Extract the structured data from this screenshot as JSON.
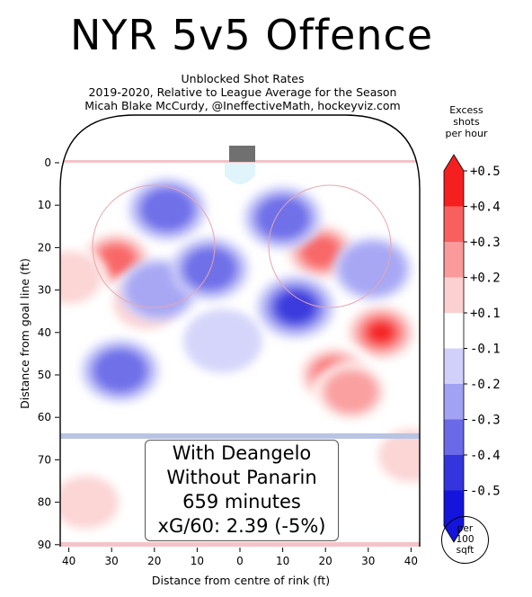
{
  "header": {
    "title": "NYR 5v5 Offence",
    "subtitle_line1": "Unblocked Shot Rates",
    "subtitle_line2": "2019-2020, Relative to League Average for the Season",
    "subtitle_line3": "Micah Blake McCurdy, @IneffectiveMath, hockeyviz.com"
  },
  "infobox": {
    "line1": "With Deangelo",
    "line2": "Without Panarin",
    "line3": "659 minutes",
    "line4": "xG/60: 2.39 (-5%)"
  },
  "colorbar": {
    "title_line1": "Excess",
    "title_line2": "shots",
    "title_line3": "per hour",
    "unit_line1": "per",
    "unit_line2": "100",
    "unit_line3": "sqft"
  },
  "chart_data": {
    "type": "heatmap",
    "xlabel": "Distance from centre of rink (ft)",
    "ylabel": "Distance from goal line (ft)",
    "xlim": [
      -42,
      42
    ],
    "ylim": [
      90,
      0
    ],
    "x_ticks": [
      40,
      30,
      20,
      10,
      0,
      10,
      20,
      30,
      40
    ],
    "y_ticks": [
      0,
      10,
      20,
      30,
      40,
      50,
      60,
      70,
      80,
      90
    ],
    "colorbar_levels": [
      "+0.5",
      "+0.4",
      "+0.3",
      "+0.2",
      "+0.1",
      "-0.1",
      "-0.2",
      "-0.3",
      "-0.4",
      "-0.5"
    ],
    "colorbar_colors": [
      "#f51f1f",
      "#f86060",
      "#fa9a9a",
      "#fcd0d0",
      "#ffffff",
      "#d0d0fb",
      "#a2a2f4",
      "#6a6ae8",
      "#3535dd",
      "#1414dc"
    ],
    "hotspots": [
      {
        "x": 33,
        "y": 40,
        "value": 0.5
      },
      {
        "x": 22,
        "y": 50,
        "value": 0.5
      },
      {
        "x": 19,
        "y": 21,
        "value": 0.4
      },
      {
        "x": -29,
        "y": 23,
        "value": 0.4
      },
      {
        "x": 26,
        "y": 54,
        "value": 0.3
      },
      {
        "x": -22,
        "y": 33,
        "value": 0.2
      },
      {
        "x": -40,
        "y": 27,
        "value": 0.2
      },
      {
        "x": 40,
        "y": 69,
        "value": 0.2
      },
      {
        "x": -36,
        "y": 80,
        "value": 0.2
      },
      {
        "x": 13,
        "y": 34,
        "value": -0.4
      },
      {
        "x": 10,
        "y": 13,
        "value": -0.3
      },
      {
        "x": -28,
        "y": 49,
        "value": -0.3
      },
      {
        "x": 31,
        "y": 25,
        "value": -0.2
      },
      {
        "x": -17,
        "y": 11,
        "value": -0.3
      },
      {
        "x": -19,
        "y": 30,
        "value": -0.2
      },
      {
        "x": -7,
        "y": 25,
        "value": -0.3
      },
      {
        "x": -4,
        "y": 42,
        "value": -0.1
      }
    ]
  }
}
